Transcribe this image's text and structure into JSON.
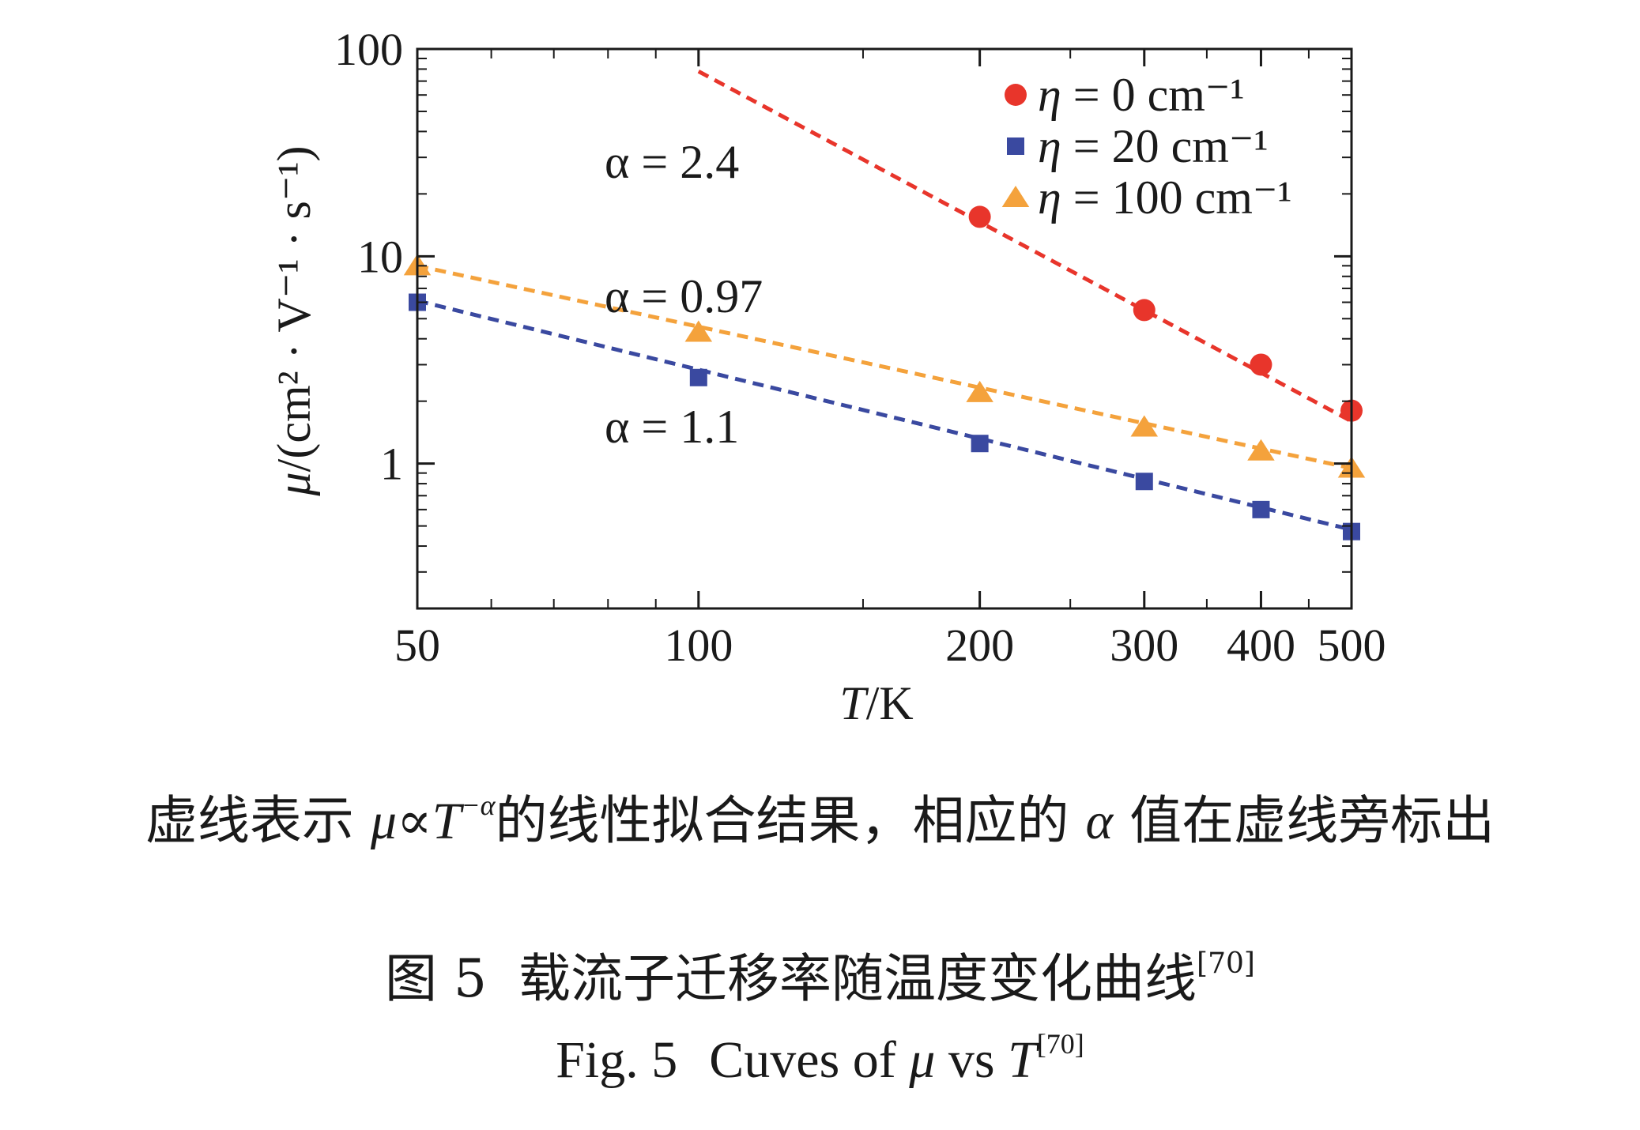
{
  "chart_data": {
    "type": "scatter",
    "xscale": "log",
    "yscale": "log",
    "xlim": [
      50,
      500
    ],
    "ylim": [
      0.2,
      100
    ],
    "xlabel": {
      "italic": "T",
      "rest": "/K"
    },
    "ylabel": {
      "italic": "μ",
      "rest": "/(cm² · V⁻¹ · s⁻¹)"
    },
    "xticks": [
      {
        "value": 50,
        "label": "50"
      },
      {
        "value": 100,
        "label": "100"
      },
      {
        "value": 200,
        "label": "200"
      },
      {
        "value": 300,
        "label": "300"
      },
      {
        "value": 400,
        "label": "400"
      },
      {
        "value": 500,
        "label": "500"
      }
    ],
    "yticks": [
      {
        "value": 1,
        "label": "1"
      },
      {
        "value": 10,
        "label": "10"
      },
      {
        "value": 100,
        "label": "100"
      }
    ],
    "legend_position": "top-right",
    "series": [
      {
        "name": "η = 0 cm⁻¹",
        "legend_prefix": "η",
        "legend_rest": " = 0 cm⁻¹",
        "marker": "circle",
        "color": "#e8352b",
        "x": [
          200,
          300,
          400,
          500
        ],
        "y": [
          15.5,
          5.5,
          3.0,
          1.8
        ],
        "fit": {
          "x": [
            100,
            500
          ],
          "y": [
            78,
            1.6
          ]
        },
        "fit_label": "α = 2.4"
      },
      {
        "name": "η = 20 cm⁻¹",
        "legend_prefix": "η",
        "legend_rest": " = 20 cm⁻¹",
        "marker": "square",
        "color": "#3a49a0",
        "x": [
          50,
          100,
          200,
          300,
          400,
          500
        ],
        "y": [
          6.0,
          2.6,
          1.25,
          0.82,
          0.6,
          0.47
        ],
        "fit": {
          "x": [
            50,
            500
          ],
          "y": [
            6.1,
            0.48
          ]
        },
        "fit_label": "α = 1.1"
      },
      {
        "name": "η = 100 cm⁻¹",
        "legend_prefix": "η",
        "legend_rest": " = 100 cm⁻¹",
        "marker": "triangle",
        "color": "#f4a23c",
        "x": [
          50,
          100,
          200,
          300,
          400,
          500
        ],
        "y": [
          9.0,
          4.3,
          2.2,
          1.5,
          1.15,
          0.95
        ],
        "fit": {
          "x": [
            50,
            500
          ],
          "y": [
            9.0,
            0.95
          ]
        },
        "fit_label": "α = 0.97"
      }
    ]
  },
  "caption": {
    "note_pre": "虚线表示 ",
    "note_mu": "μ",
    "note_prop": "∝",
    "note_T": "T",
    "note_sup": "−α",
    "note_mid": "的线性拟合结果，相应的 ",
    "note_alpha": "α",
    "note_post": " 值在虚线旁标出",
    "fig_cn_num": "图 5",
    "fig_cn_title": "载流子迁移率随温度变化曲线",
    "fig_cn_ref": "[70]",
    "fig_en_num": "Fig. 5",
    "fig_en_pre": "Cuves of ",
    "fig_en_mu": "μ",
    "fig_en_vs": " vs ",
    "fig_en_T": "T",
    "fig_en_ref": "[70]"
  }
}
